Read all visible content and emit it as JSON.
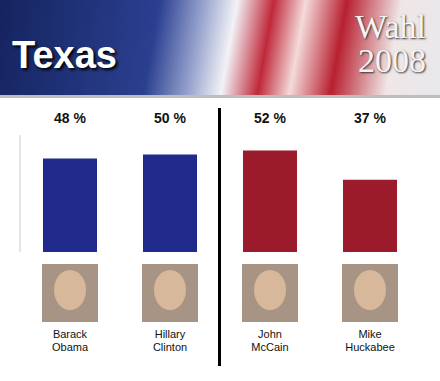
{
  "chart_data": {
    "type": "bar",
    "title": "Texas",
    "subtitle": "Wahl 2008",
    "categories": [
      "Barack Obama",
      "Hillary Clinton",
      "John McCain",
      "Mike Huckabee"
    ],
    "values": [
      48,
      50,
      52,
      37
    ],
    "value_labels": [
      "48 %",
      "50 %",
      "52 %",
      "37 %"
    ],
    "colors": [
      "#1f2a8a",
      "#1f2a8a",
      "#9b1b2a",
      "#9b1b2a"
    ],
    "ylim": [
      0,
      60
    ],
    "data_labels": true,
    "tick_labels": false,
    "grid": false
  }
}
